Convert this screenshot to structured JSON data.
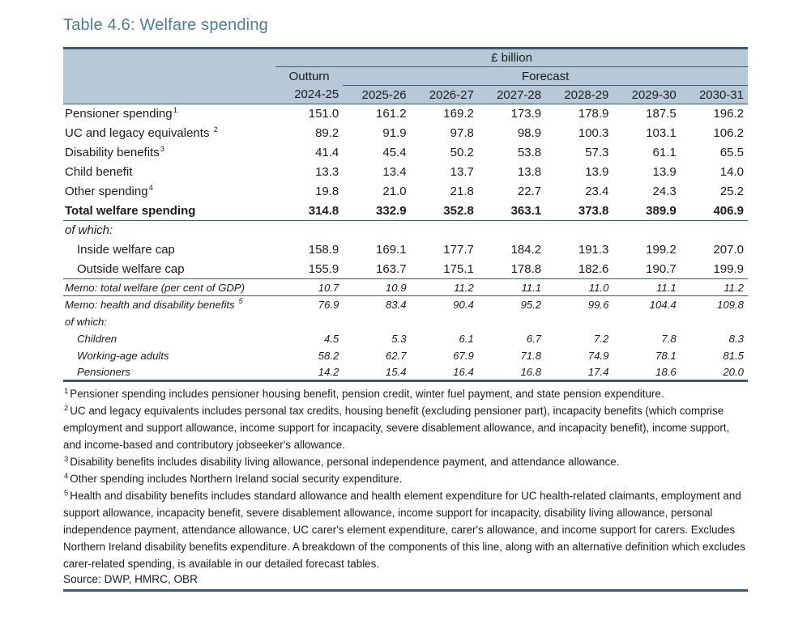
{
  "title": "Table 4.6: Welfare spending",
  "colors": {
    "title_accent": "#4e7d95",
    "header_background": "#b7c9d8",
    "rule_line": "#3b5b71",
    "text": "#1c1c1c"
  },
  "table": {
    "unit_header": "£ billion",
    "outturn_label": "Outturn",
    "forecast_label": "Forecast",
    "years": [
      "2024-25",
      "2025-26",
      "2026-27",
      "2027-28",
      "2028-29",
      "2029-30",
      "2030-31"
    ],
    "rows": [
      {
        "label": "Pensioner spending",
        "sup": "1",
        "bold": false,
        "italic": false,
        "small": false,
        "indent": false,
        "rule": "",
        "values": [
          "151.0",
          "161.2",
          "169.2",
          "173.9",
          "178.9",
          "187.5",
          "196.2"
        ]
      },
      {
        "label": "UC and legacy equivalents ",
        "sup": "2",
        "bold": false,
        "italic": false,
        "small": false,
        "indent": false,
        "rule": "",
        "values": [
          "89.2",
          "91.9",
          "97.8",
          "98.9",
          "100.3",
          "103.1",
          "106.2"
        ]
      },
      {
        "label": "Disability benefits",
        "sup": "3",
        "bold": false,
        "italic": false,
        "small": false,
        "indent": false,
        "rule": "",
        "values": [
          "41.4",
          "45.4",
          "50.2",
          "53.8",
          "57.3",
          "61.1",
          "65.5"
        ]
      },
      {
        "label": "Child benefit",
        "sup": "",
        "bold": false,
        "italic": false,
        "small": false,
        "indent": false,
        "rule": "",
        "values": [
          "13.3",
          "13.4",
          "13.7",
          "13.8",
          "13.9",
          "13.9",
          "14.0"
        ]
      },
      {
        "label": "Other spending",
        "sup": "4",
        "bold": false,
        "italic": false,
        "small": false,
        "indent": false,
        "rule": "",
        "values": [
          "19.8",
          "21.0",
          "21.8",
          "22.7",
          "23.4",
          "24.3",
          "25.2"
        ]
      },
      {
        "label": "Total welfare spending",
        "sup": "",
        "bold": true,
        "italic": false,
        "small": false,
        "indent": false,
        "rule": "thin",
        "values": [
          "314.8",
          "332.9",
          "352.8",
          "363.1",
          "373.8",
          "389.9",
          "406.9"
        ]
      },
      {
        "label": "of which:",
        "sup": "",
        "bold": false,
        "italic": true,
        "small": false,
        "indent": false,
        "rule": "",
        "values": [
          "",
          "",
          "",
          "",
          "",
          "",
          ""
        ]
      },
      {
        "label": "Inside welfare cap",
        "sup": "",
        "bold": false,
        "italic": false,
        "small": false,
        "indent": true,
        "rule": "",
        "values": [
          "158.9",
          "169.1",
          "177.7",
          "184.2",
          "191.3",
          "199.2",
          "207.0"
        ]
      },
      {
        "label": "Outside welfare cap",
        "sup": "",
        "bold": false,
        "italic": false,
        "small": false,
        "indent": true,
        "rule": "thin",
        "values": [
          "155.9",
          "163.7",
          "175.1",
          "178.8",
          "182.6",
          "190.7",
          "199.9"
        ]
      },
      {
        "label": "Memo: total welfare (per cent of GDP)",
        "sup": "",
        "bold": false,
        "italic": true,
        "small": true,
        "indent": false,
        "rule": "thin",
        "values": [
          "10.7",
          "10.9",
          "11.2",
          "11.1",
          "11.0",
          "11.1",
          "11.2"
        ]
      },
      {
        "label": "Memo: health and disability benefits ",
        "sup": "5",
        "bold": false,
        "italic": true,
        "small": true,
        "indent": false,
        "rule": "",
        "values": [
          "76.9",
          "83.4",
          "90.4",
          "95.2",
          "99.6",
          "104.4",
          "109.8"
        ]
      },
      {
        "label": "of which:",
        "sup": "",
        "bold": false,
        "italic": true,
        "small": true,
        "indent": false,
        "rule": "",
        "values": [
          "",
          "",
          "",
          "",
          "",
          "",
          ""
        ]
      },
      {
        "label": "Children",
        "sup": "",
        "bold": false,
        "italic": true,
        "small": true,
        "indent": true,
        "rule": "",
        "values": [
          "4.5",
          "5.3",
          "6.1",
          "6.7",
          "7.2",
          "7.8",
          "8.3"
        ]
      },
      {
        "label": "Working-age adults",
        "sup": "",
        "bold": false,
        "italic": true,
        "small": true,
        "indent": true,
        "rule": "",
        "values": [
          "58.2",
          "62.7",
          "67.9",
          "71.8",
          "74.9",
          "78.1",
          "81.5"
        ]
      },
      {
        "label": "Pensioners",
        "sup": "",
        "bold": false,
        "italic": true,
        "small": true,
        "indent": true,
        "rule": "thick",
        "values": [
          "14.2",
          "15.4",
          "16.4",
          "16.8",
          "17.4",
          "18.6",
          "20.0"
        ]
      }
    ]
  },
  "footnotes": [
    {
      "sup": "1",
      "text": "Pensioner spending includes pensioner housing benefit, pension credit, winter fuel payment, and state pension expenditure."
    },
    {
      "sup": "2",
      "text": "UC and legacy equivalents includes personal tax credits, housing benefit (excluding pensioner part), incapacity benefits (which comprise employment and support allowance, income support for incapacity, severe disablement allowance, and incapacity benefit), income support, and income-based and contributory jobseeker's allowance."
    },
    {
      "sup": "3",
      "text": "Disability benefits includes disability living allowance, personal independence payment, and attendance allowance."
    },
    {
      "sup": "4",
      "text": "Other spending includes Northern Ireland social security expenditure."
    },
    {
      "sup": "5",
      "text": "Health and disability benefits includes standard allowance and health element expenditure for UC health-related claimants, employment and support allowance, incapacity benefit, severe disablement allowance, income support for incapacity, disability living allowance, personal independence payment,  attendance allowance, UC carer's element expenditure, carer's allowance, and income support for carers. Excludes Northern Ireland disability benefits expenditure. A breakdown of the components of this line, along with an alternative definition which excludes carer-related spending, is available in our detailed forecast tables."
    }
  ],
  "source": "Source: DWP, HMRC, OBR"
}
